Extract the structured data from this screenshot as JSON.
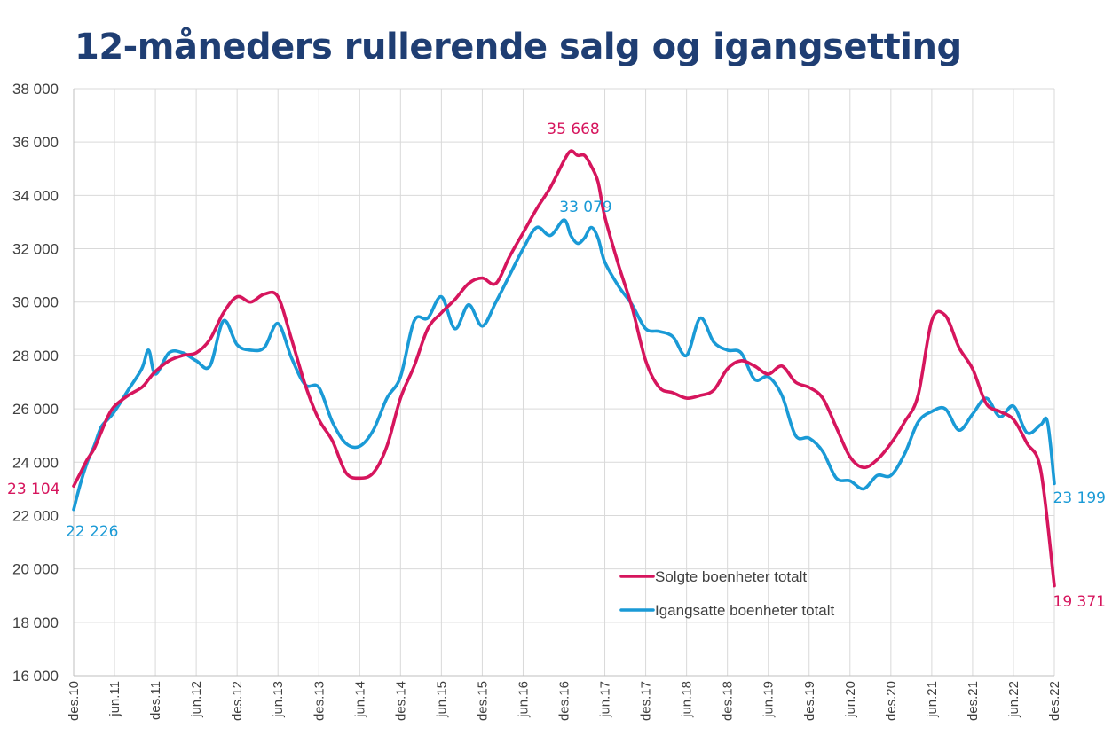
{
  "title": "12-måneders rullerende salg og igangsetting",
  "chart_data": {
    "type": "line",
    "title": "12-måneders rullerende salg og igangsetting",
    "xlabel": "",
    "ylabel": "",
    "ylim": [
      16000,
      38000
    ],
    "yticks": [
      16000,
      18000,
      20000,
      22000,
      24000,
      26000,
      28000,
      30000,
      32000,
      34000,
      36000,
      38000
    ],
    "ytick_labels": [
      "16 000",
      "18 000",
      "20 000",
      "22 000",
      "24 000",
      "26 000",
      "28 000",
      "30 000",
      "32 000",
      "34 000",
      "36 000",
      "38 000"
    ],
    "x_tick_labels": [
      "des.10",
      "jun.11",
      "des.11",
      "jun.12",
      "des.12",
      "jun.13",
      "des.13",
      "jun.14",
      "des.14",
      "jun.15",
      "des.15",
      "jun.16",
      "des.16",
      "jun.17",
      "des.17",
      "jun.18",
      "des.18",
      "jun.19",
      "des.19",
      "jun.20",
      "des.20",
      "jun.21",
      "des.21",
      "jun.22",
      "des.22"
    ],
    "grid": true,
    "legend_position": "lower-right",
    "series": [
      {
        "name": "Solgte boenheter totalt",
        "color": "#d6155d",
        "x": [
          0,
          1,
          2,
          3,
          4,
          5,
          6,
          8,
          10,
          11,
          12,
          14,
          16,
          18,
          20,
          22,
          24,
          26,
          28,
          30,
          32,
          34,
          36,
          38,
          40,
          42,
          44,
          46,
          48,
          50,
          52,
          54,
          56,
          58,
          60,
          62,
          64,
          66,
          68,
          70,
          72,
          73,
          74,
          75,
          76,
          77,
          78,
          80,
          82,
          84,
          86,
          88,
          90,
          92,
          94,
          96,
          98,
          100,
          102,
          104,
          106,
          108,
          110,
          112,
          114,
          116,
          118,
          120,
          122,
          124,
          126,
          128,
          130,
          132,
          134,
          136,
          138,
          140,
          142,
          144
        ],
        "values": [
          23104,
          23600,
          24100,
          24500,
          25100,
          25700,
          26100,
          26500,
          26800,
          27100,
          27400,
          27800,
          28000,
          28100,
          28600,
          29600,
          30200,
          30000,
          30300,
          30200,
          28600,
          26900,
          25600,
          24800,
          23600,
          23400,
          23600,
          24600,
          26400,
          27600,
          29000,
          29600,
          30100,
          30700,
          30900,
          30700,
          31700,
          32600,
          33500,
          34300,
          35300,
          35668,
          35500,
          35500,
          35100,
          34500,
          33200,
          31400,
          29800,
          27800,
          26800,
          26600,
          26400,
          26500,
          26700,
          27500,
          27800,
          27600,
          27300,
          27600,
          27000,
          26800,
          26400,
          25300,
          24200,
          23800,
          24100,
          24700,
          25500,
          26500,
          29300,
          29500,
          28300,
          27500,
          26200,
          25900,
          25600,
          24700,
          23700,
          19371
        ]
      },
      {
        "name": "Igangsatte boenheter totalt",
        "color": "#1a9ad6",
        "x": [
          0,
          1,
          2,
          3,
          4,
          5,
          6,
          8,
          10,
          11,
          12,
          14,
          16,
          18,
          20,
          22,
          24,
          26,
          28,
          30,
          32,
          34,
          36,
          38,
          40,
          42,
          44,
          46,
          48,
          50,
          52,
          54,
          56,
          58,
          60,
          62,
          64,
          66,
          68,
          70,
          72,
          73,
          74,
          75,
          76,
          77,
          78,
          80,
          82,
          84,
          86,
          88,
          90,
          92,
          94,
          96,
          98,
          100,
          102,
          104,
          106,
          108,
          110,
          112,
          114,
          116,
          118,
          120,
          122,
          124,
          126,
          128,
          130,
          132,
          134,
          136,
          138,
          140,
          142,
          143,
          144
        ],
        "values": [
          22226,
          23200,
          24000,
          24600,
          25300,
          25600,
          25900,
          26700,
          27500,
          28200,
          27300,
          28100,
          28100,
          27800,
          27600,
          29300,
          28400,
          28200,
          28300,
          29200,
          27900,
          26900,
          26800,
          25500,
          24700,
          24600,
          25200,
          26400,
          27200,
          29300,
          29400,
          30200,
          29000,
          29900,
          29100,
          30000,
          31000,
          32000,
          32800,
          32500,
          33079,
          32500,
          32200,
          32400,
          32800,
          32400,
          31500,
          30600,
          29900,
          29000,
          28900,
          28700,
          28000,
          29400,
          28500,
          28200,
          28100,
          27100,
          27200,
          26500,
          25000,
          24900,
          24400,
          23400,
          23300,
          23000,
          23500,
          23500,
          24300,
          25500,
          25900,
          26000,
          25200,
          25800,
          26400,
          25700,
          26100,
          25100,
          25400,
          25500,
          23199
        ]
      }
    ],
    "annotations": [
      {
        "text": "23 104",
        "series": "Solgte boenheter totalt"
      },
      {
        "text": "35 668",
        "series": "Solgte boenheter totalt"
      },
      {
        "text": "19 371",
        "series": "Solgte boenheter totalt"
      },
      {
        "text": "22 226",
        "series": "Igangsatte boenheter totalt"
      },
      {
        "text": "33 079",
        "series": "Igangsatte boenheter totalt"
      },
      {
        "text": "23 199",
        "series": "Igangsatte boenheter totalt"
      }
    ]
  }
}
